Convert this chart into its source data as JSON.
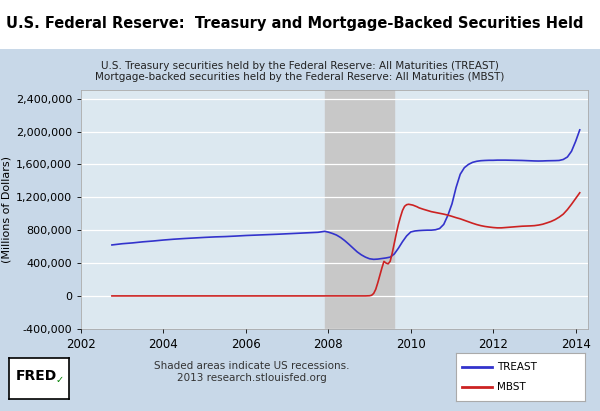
{
  "title": "U.S. Federal Reserve:  Treasury and Mortgage-Backed Securities Held",
  "subtitle_line1": "U.S. Treasury securities held by the Federal Reserve: All Maturities (TREAST)",
  "subtitle_line2": "Mortgage-backed securities held by the Federal Reserve: All Maturities (MBST)",
  "ylabel": "(Millions of Dollars)",
  "xlabel_note": "Shaded areas indicate US recessions.\n2013 research.stlouisfed.org",
  "fred_label": "FRED",
  "legend_treast": "TREAST",
  "legend_mbst": "MBST",
  "background_outer_top": "#ffffff",
  "background_panel": "#c8d8e8",
  "background_inner": "#dce8f0",
  "recession_color": "#c8c8c8",
  "recession_start": 2007.917,
  "recession_end": 2009.583,
  "ylim": [
    -400000,
    2500000
  ],
  "xlim": [
    2002,
    2014.3
  ],
  "yticks": [
    -400000,
    0,
    400000,
    800000,
    1200000,
    1600000,
    2000000,
    2400000
  ],
  "xticks": [
    2002,
    2004,
    2006,
    2008,
    2010,
    2012,
    2014
  ],
  "treast_color": "#3333cc",
  "mbst_color": "#cc2222",
  "treast_data": [
    [
      2002.75,
      620000
    ],
    [
      2003.0,
      635000
    ],
    [
      2003.25,
      645000
    ],
    [
      2003.5,
      658000
    ],
    [
      2003.75,
      668000
    ],
    [
      2004.0,
      680000
    ],
    [
      2004.25,
      690000
    ],
    [
      2004.5,
      698000
    ],
    [
      2004.75,
      705000
    ],
    [
      2005.0,
      712000
    ],
    [
      2005.25,
      718000
    ],
    [
      2005.5,
      722000
    ],
    [
      2005.75,
      728000
    ],
    [
      2006.0,
      735000
    ],
    [
      2006.25,
      740000
    ],
    [
      2006.5,
      745000
    ],
    [
      2006.75,
      750000
    ],
    [
      2007.0,
      756000
    ],
    [
      2007.25,
      762000
    ],
    [
      2007.5,
      768000
    ],
    [
      2007.75,
      774000
    ],
    [
      2007.917,
      786000
    ],
    [
      2008.0,
      776000
    ],
    [
      2008.1,
      760000
    ],
    [
      2008.2,
      740000
    ],
    [
      2008.3,
      710000
    ],
    [
      2008.4,
      672000
    ],
    [
      2008.5,
      628000
    ],
    [
      2008.6,
      582000
    ],
    [
      2008.7,
      536000
    ],
    [
      2008.8,
      500000
    ],
    [
      2008.9,
      472000
    ],
    [
      2009.0,
      452000
    ],
    [
      2009.1,
      445000
    ],
    [
      2009.2,
      448000
    ],
    [
      2009.3,
      455000
    ],
    [
      2009.4,
      462000
    ],
    [
      2009.5,
      472000
    ],
    [
      2009.6,
      510000
    ],
    [
      2009.7,
      580000
    ],
    [
      2009.8,
      660000
    ],
    [
      2009.9,
      730000
    ],
    [
      2010.0,
      778000
    ],
    [
      2010.1,
      790000
    ],
    [
      2010.2,
      795000
    ],
    [
      2010.3,
      798000
    ],
    [
      2010.4,
      800000
    ],
    [
      2010.5,
      800000
    ],
    [
      2010.6,
      805000
    ],
    [
      2010.7,
      820000
    ],
    [
      2010.8,
      870000
    ],
    [
      2010.9,
      980000
    ],
    [
      2011.0,
      1120000
    ],
    [
      2011.1,
      1320000
    ],
    [
      2011.2,
      1480000
    ],
    [
      2011.3,
      1560000
    ],
    [
      2011.4,
      1600000
    ],
    [
      2011.5,
      1625000
    ],
    [
      2011.6,
      1638000
    ],
    [
      2011.7,
      1645000
    ],
    [
      2011.8,
      1648000
    ],
    [
      2011.9,
      1650000
    ],
    [
      2012.0,
      1650000
    ],
    [
      2012.1,
      1652000
    ],
    [
      2012.2,
      1652000
    ],
    [
      2012.3,
      1652000
    ],
    [
      2012.4,
      1651000
    ],
    [
      2012.5,
      1650000
    ],
    [
      2012.6,
      1649000
    ],
    [
      2012.7,
      1648000
    ],
    [
      2012.8,
      1646000
    ],
    [
      2012.9,
      1644000
    ],
    [
      2013.0,
      1642000
    ],
    [
      2013.1,
      1641000
    ],
    [
      2013.2,
      1642000
    ],
    [
      2013.3,
      1644000
    ],
    [
      2013.4,
      1645000
    ],
    [
      2013.5,
      1646000
    ],
    [
      2013.6,
      1648000
    ],
    [
      2013.7,
      1660000
    ],
    [
      2013.8,
      1690000
    ],
    [
      2013.9,
      1760000
    ],
    [
      2014.0,
      1880000
    ],
    [
      2014.1,
      2020000
    ]
  ],
  "mbst_data": [
    [
      2002.75,
      0
    ],
    [
      2003.0,
      0
    ],
    [
      2004.0,
      0
    ],
    [
      2005.0,
      0
    ],
    [
      2006.0,
      0
    ],
    [
      2007.0,
      0
    ],
    [
      2007.5,
      0
    ],
    [
      2007.917,
      0
    ],
    [
      2008.0,
      0
    ],
    [
      2008.2,
      0
    ],
    [
      2008.4,
      0
    ],
    [
      2008.6,
      0
    ],
    [
      2008.8,
      0
    ],
    [
      2008.9,
      0
    ],
    [
      2009.0,
      2000
    ],
    [
      2009.05,
      8000
    ],
    [
      2009.1,
      30000
    ],
    [
      2009.15,
      80000
    ],
    [
      2009.2,
      160000
    ],
    [
      2009.25,
      250000
    ],
    [
      2009.3,
      340000
    ],
    [
      2009.35,
      420000
    ],
    [
      2009.4,
      400000
    ],
    [
      2009.45,
      390000
    ],
    [
      2009.5,
      420000
    ],
    [
      2009.55,
      520000
    ],
    [
      2009.6,
      640000
    ],
    [
      2009.65,
      760000
    ],
    [
      2009.7,
      870000
    ],
    [
      2009.75,
      960000
    ],
    [
      2009.8,
      1040000
    ],
    [
      2009.85,
      1090000
    ],
    [
      2009.9,
      1110000
    ],
    [
      2009.95,
      1115000
    ],
    [
      2010.0,
      1110000
    ],
    [
      2010.05,
      1105000
    ],
    [
      2010.1,
      1095000
    ],
    [
      2010.15,
      1085000
    ],
    [
      2010.2,
      1072000
    ],
    [
      2010.3,
      1055000
    ],
    [
      2010.4,
      1040000
    ],
    [
      2010.5,
      1025000
    ],
    [
      2010.6,
      1015000
    ],
    [
      2010.7,
      1005000
    ],
    [
      2010.8,
      995000
    ],
    [
      2010.9,
      983000
    ],
    [
      2011.0,
      968000
    ],
    [
      2011.1,
      952000
    ],
    [
      2011.2,
      938000
    ],
    [
      2011.3,
      920000
    ],
    [
      2011.4,
      902000
    ],
    [
      2011.5,
      884000
    ],
    [
      2011.6,
      868000
    ],
    [
      2011.7,
      855000
    ],
    [
      2011.8,
      845000
    ],
    [
      2011.9,
      838000
    ],
    [
      2012.0,
      832000
    ],
    [
      2012.1,
      828000
    ],
    [
      2012.2,
      828000
    ],
    [
      2012.3,
      832000
    ],
    [
      2012.4,
      836000
    ],
    [
      2012.5,
      840000
    ],
    [
      2012.6,
      844000
    ],
    [
      2012.7,
      848000
    ],
    [
      2012.8,
      850000
    ],
    [
      2012.9,
      852000
    ],
    [
      2013.0,
      855000
    ],
    [
      2013.1,
      862000
    ],
    [
      2013.2,
      872000
    ],
    [
      2013.3,
      888000
    ],
    [
      2013.4,
      905000
    ],
    [
      2013.5,
      928000
    ],
    [
      2013.6,
      958000
    ],
    [
      2013.7,
      995000
    ],
    [
      2013.8,
      1050000
    ],
    [
      2013.9,
      1115000
    ],
    [
      2014.0,
      1185000
    ],
    [
      2014.1,
      1255000
    ]
  ]
}
